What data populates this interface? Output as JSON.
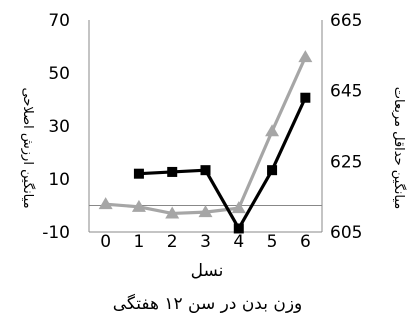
{
  "caption": "وزن بدن در سن ۱۲ هفتگی",
  "chart_data": {
    "type": "line",
    "title": "",
    "xlabel": "نسل",
    "ylabel_left": "میانگین ارزش اصلاحی",
    "ylabel_right": "میانگین حداقل مربعات",
    "categories": [
      "0",
      "1",
      "2",
      "3",
      "4",
      "5",
      "6"
    ],
    "x": [
      0,
      1,
      2,
      3,
      4,
      5,
      6
    ],
    "yaxis_left": {
      "ticks": [
        -10,
        10,
        30,
        50,
        70
      ],
      "range": [
        -10,
        70
      ]
    },
    "yaxis_right": {
      "ticks": [
        605,
        625,
        645,
        665
      ],
      "range": [
        605,
        665
      ]
    },
    "zero_line": true,
    "series": [
      {
        "axis": "left",
        "marker": "triangle",
        "color": "#a6a6a6",
        "values": [
          0.5,
          -0.5,
          -3,
          -2.5,
          -1,
          28,
          56
        ]
      },
      {
        "axis": "right",
        "marker": "square",
        "color": "#000000",
        "values": [
          null,
          621.5,
          622,
          622.5,
          606,
          622.5,
          643
        ]
      }
    ]
  }
}
